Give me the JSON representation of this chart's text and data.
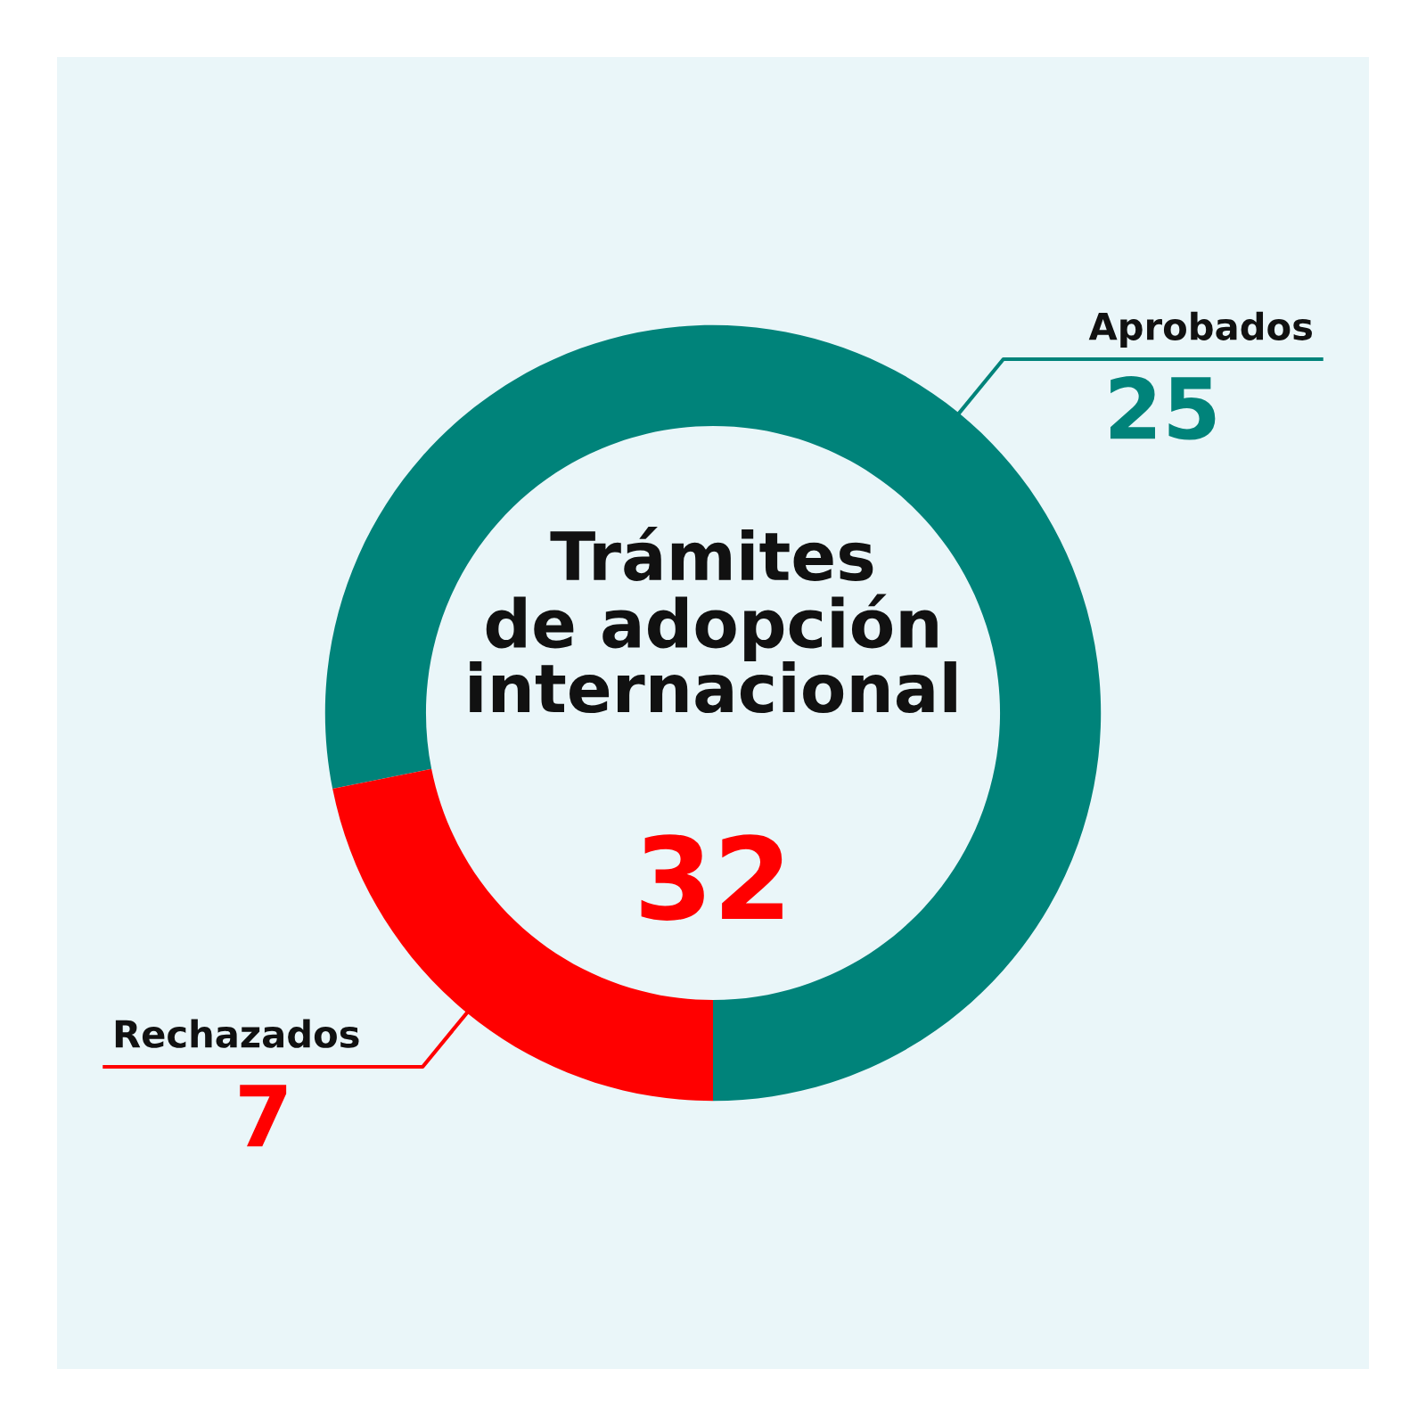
{
  "chart_data": {
    "type": "donut",
    "title": "Trámites\nde adopción\ninternacional",
    "annotations": [
      "32"
    ],
    "categories": [
      "Aprobados",
      "Rechazados"
    ],
    "values": [
      25,
      7
    ],
    "colors": [
      "#00837a",
      "#ff0000"
    ],
    "data_labels": true,
    "legend": false
  }
}
